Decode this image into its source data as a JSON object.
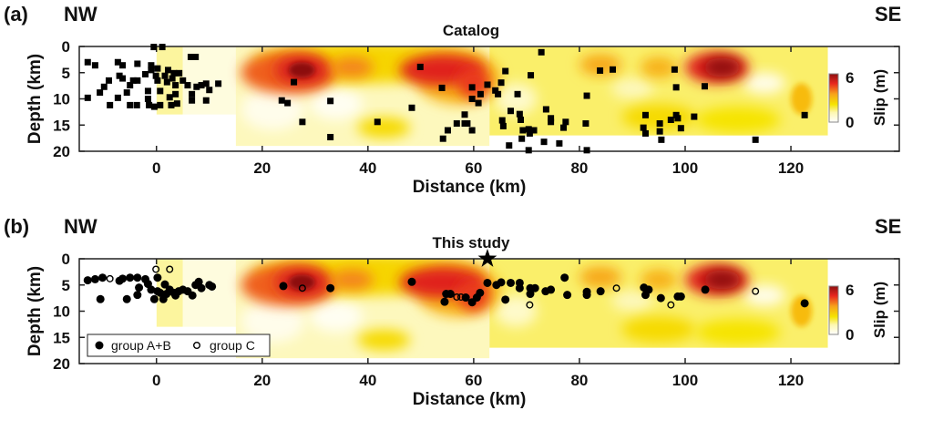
{
  "slip_model": {
    "colorbar_stops": [
      [
        0,
        "#ffffff"
      ],
      [
        1.2,
        "#fdf7b0"
      ],
      [
        2.2,
        "#f6e400"
      ],
      [
        3.5,
        "#f7a21b"
      ],
      [
        4.8,
        "#e8261f"
      ],
      [
        6,
        "#8c1010"
      ]
    ],
    "segments": [
      {
        "x": [
          0,
          5
        ],
        "depth": [
          0,
          13
        ],
        "base_slip": 1.3
      },
      {
        "x": [
          5,
          15
        ],
        "depth": [
          0,
          13
        ],
        "base_slip": 0.5
      },
      {
        "x": [
          15,
          63
        ],
        "depth": [
          0,
          19
        ],
        "base_slip": 1.0
      },
      {
        "x": [
          63,
          127
        ],
        "depth": [
          0,
          17
        ],
        "base_slip": 1.6
      }
    ],
    "patches": [
      {
        "x": 22,
        "depth": 12,
        "rx": 6,
        "rz": 4,
        "slip": 0.3
      },
      {
        "x": 34,
        "depth": 11,
        "rx": 5,
        "rz": 3,
        "slip": 0.2
      },
      {
        "x": 68,
        "depth": 10,
        "rx": 4,
        "rz": 3,
        "slip": 0.8
      },
      {
        "x": 115,
        "depth": 7,
        "rx": 4,
        "rz": 2,
        "slip": 0.3
      },
      {
        "x": 90,
        "depth": 8,
        "rx": 4,
        "rz": 2,
        "slip": 1.0
      },
      {
        "x": 43,
        "depth": 15.5,
        "rx": 5,
        "rz": 2,
        "slip": 2.4
      },
      {
        "x": 95,
        "depth": 13.5,
        "rx": 7,
        "rz": 2.5,
        "slip": 2.4
      },
      {
        "x": 110,
        "depth": 14,
        "rx": 8,
        "rz": 2.5,
        "slip": 2.2
      },
      {
        "x": 40,
        "depth": 3,
        "rx": 22,
        "rz": 4,
        "slip": 2.5
      },
      {
        "x": 57,
        "depth": 6,
        "rx": 8,
        "rz": 5,
        "slip": 3.2
      },
      {
        "x": 25,
        "depth": 5,
        "rx": 9,
        "rz": 4,
        "slip": 4.2
      },
      {
        "x": 27.5,
        "depth": 4.5,
        "rx": 5,
        "rz": 2.8,
        "slip": 5.0
      },
      {
        "x": 27.5,
        "depth": 4.5,
        "rx": 2.5,
        "rz": 1.5,
        "slip": 6.0
      },
      {
        "x": 37,
        "depth": 4,
        "rx": 4,
        "rz": 2,
        "slip": 3.8
      },
      {
        "x": 54,
        "depth": 4.5,
        "rx": 8,
        "rz": 3,
        "slip": 4.9
      },
      {
        "x": 60,
        "depth": 7,
        "rx": 3,
        "rz": 3,
        "slip": 4.6
      },
      {
        "x": 84,
        "depth": 3.5,
        "rx": 4,
        "rz": 2,
        "slip": 3.4
      },
      {
        "x": 95,
        "depth": 4,
        "rx": 3.5,
        "rz": 2,
        "slip": 3.2
      },
      {
        "x": 106,
        "depth": 4,
        "rx": 6,
        "rz": 3,
        "slip": 4.9
      },
      {
        "x": 107,
        "depth": 4,
        "rx": 3.5,
        "rz": 1.8,
        "slip": 6.0
      },
      {
        "x": 122,
        "depth": 10,
        "rx": 2,
        "rz": 3,
        "slip": 3.0
      }
    ]
  },
  "chart_data": [
    {
      "type": "scatter",
      "panel_label": "(a)",
      "left_label": "NW",
      "right_label": "SE",
      "title": "Catalog",
      "xlabel": "Distance (km)",
      "ylabel": "Depth (km)",
      "xlim": [
        -14.6,
        140.5
      ],
      "ylim": [
        0,
        20
      ],
      "y_inverted": true,
      "xticks": [
        "0",
        "20",
        "40",
        "60",
        "80",
        "100",
        "120"
      ],
      "yticks": [
        "0",
        "5",
        "10",
        "15",
        "20"
      ],
      "colorbar": {
        "label": "Slip (m)",
        "ticks": [
          "6",
          "0"
        ],
        "range": [
          0,
          6
        ]
      },
      "series": [
        {
          "name": "catalog events",
          "marker": "square",
          "points": [
            [
              -13,
              3.0
            ],
            [
              -11.6,
              3.6
            ],
            [
              -13,
              9.8
            ],
            [
              -10.7,
              8.8
            ],
            [
              -9.9,
              7.7
            ],
            [
              -9,
              6.5
            ],
            [
              -8.8,
              11.2
            ],
            [
              -7.3,
              3.0
            ],
            [
              -6.4,
              3.6
            ],
            [
              -7,
              5.6
            ],
            [
              -6.4,
              6.1
            ],
            [
              -7.3,
              9.8
            ],
            [
              -5.6,
              8.8
            ],
            [
              -5,
              7.4
            ],
            [
              -4.4,
              6.5
            ],
            [
              -3.6,
              6.5
            ],
            [
              -5,
              11.2
            ],
            [
              -3.7,
              11.2
            ],
            [
              -3.6,
              3.3
            ],
            [
              -2.1,
              5.3
            ],
            [
              -1.6,
              8.5
            ],
            [
              -1.6,
              10
            ],
            [
              -1.4,
              11.2
            ],
            [
              -0.4,
              11.5
            ],
            [
              -1,
              3.6
            ],
            [
              -0.5,
              0.1
            ],
            [
              1.1,
              0.1
            ],
            [
              -1,
              4.5
            ],
            [
              -0.1,
              5.6
            ],
            [
              0.2,
              6.5
            ],
            [
              0.7,
              8.5
            ],
            [
              0.7,
              11.2
            ],
            [
              1.6,
              5.6
            ],
            [
              2.2,
              4.5
            ],
            [
              2,
              6.8
            ],
            [
              2.5,
              9.7
            ],
            [
              2.8,
              11.2
            ],
            [
              3.3,
              5.1
            ],
            [
              3.6,
              7.4
            ],
            [
              3.9,
              10.9
            ],
            [
              4.3,
              5.1
            ],
            [
              3.6,
              9.1
            ],
            [
              5,
              6.5
            ],
            [
              6.5,
              2.0
            ],
            [
              7.4,
              2.0
            ],
            [
              5.9,
              7.4
            ],
            [
              6.7,
              9.1
            ],
            [
              6.7,
              10.3
            ],
            [
              7.6,
              7.7
            ],
            [
              8.5,
              7.4
            ],
            [
              9.4,
              7.1
            ],
            [
              10,
              8.3
            ],
            [
              9.4,
              10.3
            ],
            [
              11.7,
              7.1
            ],
            [
              0.2,
              4.2
            ],
            [
              3,
              6.1
            ],
            [
              26,
              6.8
            ],
            [
              23.7,
              10.3
            ],
            [
              24.8,
              10.8
            ],
            [
              27.6,
              14.4
            ],
            [
              32.9,
              10.4
            ],
            [
              32.9,
              17.3
            ],
            [
              41.8,
              14.4
            ],
            [
              49.9,
              3.9
            ],
            [
              48.3,
              11.7
            ],
            [
              54,
              7.9
            ],
            [
              54.2,
              17.6
            ],
            [
              55.1,
              16
            ],
            [
              56.8,
              14.7
            ],
            [
              58.3,
              13
            ],
            [
              58.3,
              14.7
            ],
            [
              72.8,
              1.1
            ],
            [
              66,
              4.7
            ],
            [
              70.8,
              5.5
            ],
            [
              65.2,
              6.9
            ],
            [
              62.6,
              7.3
            ],
            [
              59.7,
              7.8
            ],
            [
              64.1,
              8.4
            ],
            [
              64.6,
              9.1
            ],
            [
              61.3,
              9.1
            ],
            [
              59.7,
              10
            ],
            [
              60.9,
              10.8
            ],
            [
              68.3,
              9.1
            ],
            [
              67,
              12.3
            ],
            [
              68.7,
              12.9
            ],
            [
              68.9,
              14
            ],
            [
              65.4,
              14.1
            ],
            [
              65.6,
              15.2
            ],
            [
              58.8,
              14.7
            ],
            [
              59.7,
              16
            ],
            [
              69.3,
              16
            ],
            [
              69.1,
              17.6
            ],
            [
              70.4,
              15.8
            ],
            [
              71.4,
              16
            ],
            [
              70.6,
              16.6
            ],
            [
              66.7,
              18.9
            ],
            [
              70.4,
              19.8
            ],
            [
              73.7,
              12
            ],
            [
              74.6,
              13.7
            ],
            [
              74.6,
              14.4
            ],
            [
              73.3,
              18.2
            ],
            [
              76.2,
              18.5
            ],
            [
              77.4,
              14.4
            ],
            [
              77,
              15.5
            ],
            [
              81.2,
              14.7
            ],
            [
              81.4,
              9.4
            ],
            [
              81.4,
              19.8
            ],
            [
              83.9,
              4.6
            ],
            [
              86.3,
              4.4
            ],
            [
              92.5,
              13.1
            ],
            [
              92.1,
              15.5
            ],
            [
              92.5,
              16.6
            ],
            [
              95.2,
              14.7
            ],
            [
              95.2,
              16.2
            ],
            [
              95.5,
              17.8
            ],
            [
              97.3,
              14
            ],
            [
              98.3,
              13.1
            ],
            [
              98.6,
              13.7
            ],
            [
              99.2,
              15.6
            ],
            [
              98,
              4.4
            ],
            [
              98.3,
              7.8
            ],
            [
              101.7,
              13.4
            ],
            [
              103.7,
              7.6
            ],
            [
              113.3,
              17.8
            ],
            [
              122.6,
              13.1
            ]
          ]
        }
      ]
    },
    {
      "type": "scatter",
      "panel_label": "(b)",
      "left_label": "NW",
      "right_label": "SE",
      "title": "This study",
      "xlabel": "Distance (km)",
      "ylabel": "Depth (km)",
      "xlim": [
        -14.6,
        140.5
      ],
      "ylim": [
        0,
        20
      ],
      "y_inverted": true,
      "xticks": [
        "0",
        "20",
        "40",
        "60",
        "80",
        "100",
        "120"
      ],
      "yticks": [
        "0",
        "5",
        "10",
        "15",
        "20"
      ],
      "colorbar": {
        "label": "Slip (m)",
        "ticks": [
          "6",
          "0"
        ],
        "range": [
          0,
          6
        ]
      },
      "mainshock": {
        "marker": "star",
        "x": 62.6,
        "depth": 0
      },
      "legend": {
        "position": "bottom-left",
        "entries": [
          "group A+B",
          "group C"
        ]
      },
      "series": [
        {
          "name": "group A+B",
          "marker": "filled-circle",
          "points": [
            [
              -13,
              4.1
            ],
            [
              -11.6,
              3.9
            ],
            [
              -10.2,
              3.6
            ],
            [
              -7,
              4.2
            ],
            [
              -6.4,
              3.8
            ],
            [
              -5,
              3.6
            ],
            [
              -3.6,
              3.6
            ],
            [
              -2.1,
              3.9
            ],
            [
              -3.3,
              5.5
            ],
            [
              -3.6,
              6.9
            ],
            [
              -10.6,
              7.7
            ],
            [
              -5.6,
              7.7
            ],
            [
              0.2,
              3.6
            ],
            [
              -1.6,
              4.8
            ],
            [
              -1,
              5.9
            ],
            [
              -0.4,
              7.7
            ],
            [
              1.3,
              7.7
            ],
            [
              0.2,
              6.2
            ],
            [
              1.6,
              4.9
            ],
            [
              2.5,
              5.9
            ],
            [
              3.3,
              6.5
            ],
            [
              4.2,
              6.2
            ],
            [
              5,
              5.9
            ],
            [
              5.9,
              6.2
            ],
            [
              6.8,
              7
            ],
            [
              7.4,
              5
            ],
            [
              8,
              4.4
            ],
            [
              8.5,
              5.6
            ],
            [
              10,
              5
            ],
            [
              10.5,
              5.3
            ],
            [
              3.6,
              7
            ],
            [
              0.7,
              6.5
            ],
            [
              1.9,
              6.7
            ],
            [
              24,
              5.2
            ],
            [
              32.9,
              5.6
            ],
            [
              48.3,
              4.4
            ],
            [
              54.5,
              8.2
            ],
            [
              54.8,
              6.7
            ],
            [
              55.6,
              6.7
            ],
            [
              58.5,
              7.4
            ],
            [
              59.7,
              8.3
            ],
            [
              60.6,
              7.4
            ],
            [
              61.2,
              6.5
            ],
            [
              62.6,
              4.6
            ],
            [
              64.3,
              5
            ],
            [
              65.2,
              4.5
            ],
            [
              67,
              4.6
            ],
            [
              68.7,
              4.6
            ],
            [
              68.7,
              5.6
            ],
            [
              70.7,
              5.6
            ],
            [
              70.7,
              6.7
            ],
            [
              71.6,
              5.6
            ],
            [
              66,
              7.8
            ],
            [
              73.6,
              6.2
            ],
            [
              74.6,
              5.9
            ],
            [
              77.2,
              3.6
            ],
            [
              77.7,
              6.9
            ],
            [
              81.4,
              6.3
            ],
            [
              81.4,
              6.9
            ],
            [
              84,
              6.2
            ],
            [
              92.2,
              5.5
            ],
            [
              93.1,
              5.9
            ],
            [
              92.5,
              6.9
            ],
            [
              95.4,
              7.5
            ],
            [
              98.6,
              7.2
            ],
            [
              99.2,
              7.2
            ],
            [
              103.8,
              5.9
            ],
            [
              122.6,
              8.5
            ]
          ]
        },
        {
          "name": "group C",
          "marker": "open-circle",
          "points": [
            [
              -8.8,
              3.8
            ],
            [
              -0.1,
              2
            ],
            [
              2.5,
              2
            ],
            [
              27.6,
              5.6
            ],
            [
              56.8,
              7.3
            ],
            [
              57.6,
              7.3
            ],
            [
              87,
              5.6
            ],
            [
              70.6,
              8.8
            ],
            [
              97.3,
              8.8
            ],
            [
              113.3,
              6.2
            ]
          ]
        }
      ]
    }
  ]
}
